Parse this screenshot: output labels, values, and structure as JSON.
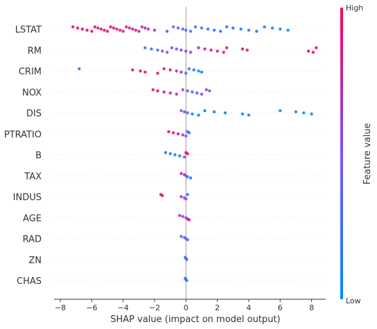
{
  "chart_data": {
    "type": "scatter",
    "variant": "beeswarm",
    "title": "",
    "xlabel": "SHAP value (impact on model output)",
    "ylabel": "",
    "xlim": [
      -8.4,
      8.9
    ],
    "xticks": [
      -8,
      -6,
      -4,
      -2,
      0,
      2,
      4,
      6,
      8
    ],
    "zero_line": true,
    "grid": false,
    "colorbar": {
      "title": "Feature value",
      "high_label": "High",
      "low_label": "Low",
      "low_color": "#008bfb",
      "high_color": "#ff0052"
    },
    "features": [
      {
        "name": "LSTAT",
        "points": [
          [
            -7.2,
            0.95
          ],
          [
            -6.9,
            0.95
          ],
          [
            -6.6,
            0.93
          ],
          [
            -6.3,
            0.92
          ],
          [
            -6.0,
            0.9
          ],
          [
            -5.8,
            0.92
          ],
          [
            -5.6,
            0.9
          ],
          [
            -5.4,
            0.9
          ],
          [
            -5.2,
            0.88
          ],
          [
            -5.0,
            0.9
          ],
          [
            -4.8,
            0.88
          ],
          [
            -4.6,
            0.9
          ],
          [
            -4.4,
            0.85
          ],
          [
            -4.2,
            0.85
          ],
          [
            -4.0,
            0.85
          ],
          [
            -3.8,
            0.8
          ],
          [
            -3.6,
            0.82
          ],
          [
            -3.4,
            0.8
          ],
          [
            -3.2,
            0.8
          ],
          [
            -3.0,
            0.78
          ],
          [
            -2.8,
            0.75
          ],
          [
            -2.6,
            0.75
          ],
          [
            -2.4,
            0.7
          ],
          [
            -2.0,
            0.7
          ],
          [
            -1.2,
            0.6
          ],
          [
            -0.8,
            0.5
          ],
          [
            -0.5,
            0.45
          ],
          [
            -0.2,
            0.35
          ],
          [
            0.0,
            0.3
          ],
          [
            0.3,
            0.25
          ],
          [
            0.6,
            0.2
          ],
          [
            1.0,
            0.2
          ],
          [
            1.4,
            0.18
          ],
          [
            1.8,
            0.15
          ],
          [
            2.2,
            0.12
          ],
          [
            2.6,
            0.12
          ],
          [
            3.0,
            0.1
          ],
          [
            3.5,
            0.1
          ],
          [
            4.0,
            0.08
          ],
          [
            4.5,
            0.08
          ],
          [
            5.0,
            0.06
          ],
          [
            5.5,
            0.05
          ],
          [
            6.0,
            0.05
          ],
          [
            6.5,
            0.05
          ]
        ]
      },
      {
        "name": "RM",
        "points": [
          [
            -2.6,
            0.1
          ],
          [
            -2.2,
            0.2
          ],
          [
            -1.8,
            0.3
          ],
          [
            -1.5,
            0.35
          ],
          [
            -1.2,
            0.4
          ],
          [
            -0.9,
            0.45
          ],
          [
            -0.6,
            0.5
          ],
          [
            -0.3,
            0.55
          ],
          [
            0.0,
            0.6
          ],
          [
            0.3,
            0.65
          ],
          [
            0.8,
            0.75
          ],
          [
            1.2,
            0.8
          ],
          [
            1.6,
            0.82
          ],
          [
            2.0,
            0.85
          ],
          [
            2.4,
            0.85
          ],
          [
            2.6,
            0.88
          ],
          [
            3.6,
            0.9
          ],
          [
            3.9,
            0.9
          ],
          [
            7.8,
            0.98
          ],
          [
            8.1,
            0.98
          ],
          [
            8.3,
            0.98
          ]
        ]
      },
      {
        "name": "CRIM",
        "points": [
          [
            -6.8,
            0.1
          ],
          [
            -3.4,
            0.92
          ],
          [
            -2.9,
            0.95
          ],
          [
            -2.6,
            0.9
          ],
          [
            -1.8,
            0.9
          ],
          [
            -1.4,
            0.88
          ],
          [
            -1.0,
            0.85
          ],
          [
            -0.6,
            0.8
          ],
          [
            -0.3,
            0.7
          ],
          [
            0.0,
            0.3
          ],
          [
            0.2,
            0.15
          ],
          [
            0.5,
            0.1
          ],
          [
            0.8,
            0.05
          ],
          [
            1.0,
            0.05
          ]
        ]
      },
      {
        "name": "NOX",
        "points": [
          [
            -2.1,
            0.95
          ],
          [
            -1.8,
            0.9
          ],
          [
            -1.4,
            0.85
          ],
          [
            -1.0,
            0.8
          ],
          [
            -0.6,
            0.75
          ],
          [
            -0.2,
            0.6
          ],
          [
            0.1,
            0.4
          ],
          [
            0.4,
            0.3
          ],
          [
            0.7,
            0.35
          ],
          [
            1.0,
            0.45
          ],
          [
            1.3,
            0.55
          ],
          [
            1.5,
            0.6
          ]
        ]
      },
      {
        "name": "DIS",
        "points": [
          [
            -0.3,
            0.55
          ],
          [
            -0.1,
            0.6
          ],
          [
            0.1,
            0.25
          ],
          [
            0.4,
            0.1
          ],
          [
            0.8,
            0.05
          ],
          [
            1.2,
            0.05
          ],
          [
            1.8,
            0.03
          ],
          [
            2.5,
            0.02
          ],
          [
            3.6,
            0.02
          ],
          [
            4.0,
            0.02
          ],
          [
            6.0,
            0.02
          ],
          [
            7.0,
            0.02
          ],
          [
            7.5,
            0.02
          ],
          [
            8.0,
            0.02
          ]
        ]
      },
      {
        "name": "PTRATIO",
        "points": [
          [
            -1.1,
            0.95
          ],
          [
            -0.8,
            0.9
          ],
          [
            -0.5,
            0.85
          ],
          [
            -0.2,
            0.75
          ],
          [
            0.0,
            0.5
          ],
          [
            0.1,
            0.3
          ],
          [
            0.2,
            0.2
          ]
        ]
      },
      {
        "name": "B",
        "points": [
          [
            -1.3,
            0.05
          ],
          [
            -1.0,
            0.1
          ],
          [
            -0.7,
            0.15
          ],
          [
            -0.4,
            0.2
          ],
          [
            -0.1,
            0.5
          ],
          [
            0.0,
            0.9
          ],
          [
            0.1,
            0.95
          ]
        ]
      },
      {
        "name": "TAX",
        "points": [
          [
            -0.3,
            0.85
          ],
          [
            -0.1,
            0.7
          ],
          [
            0.0,
            0.5
          ],
          [
            0.1,
            0.3
          ],
          [
            0.3,
            0.1
          ]
        ]
      },
      {
        "name": "INDUS",
        "points": [
          [
            -1.6,
            0.95
          ],
          [
            -1.5,
            0.95
          ],
          [
            -0.3,
            0.8
          ],
          [
            -0.1,
            0.6
          ],
          [
            0.0,
            0.4
          ],
          [
            0.1,
            0.3
          ]
        ]
      },
      {
        "name": "AGE",
        "points": [
          [
            -0.4,
            0.7
          ],
          [
            -0.2,
            0.6
          ],
          [
            0.0,
            0.5
          ],
          [
            0.1,
            0.8
          ],
          [
            0.2,
            0.9
          ]
        ]
      },
      {
        "name": "RAD",
        "points": [
          [
            -0.3,
            0.3
          ],
          [
            -0.1,
            0.4
          ],
          [
            0.0,
            0.5
          ],
          [
            0.1,
            0.3
          ]
        ]
      },
      {
        "name": "ZN",
        "points": [
          [
            -0.05,
            0.2
          ],
          [
            0.0,
            0.3
          ],
          [
            0.05,
            0.4
          ]
        ]
      },
      {
        "name": "CHAS",
        "points": [
          [
            -0.05,
            0.1
          ],
          [
            0.0,
            0.1
          ],
          [
            0.05,
            0.2
          ]
        ]
      }
    ]
  }
}
